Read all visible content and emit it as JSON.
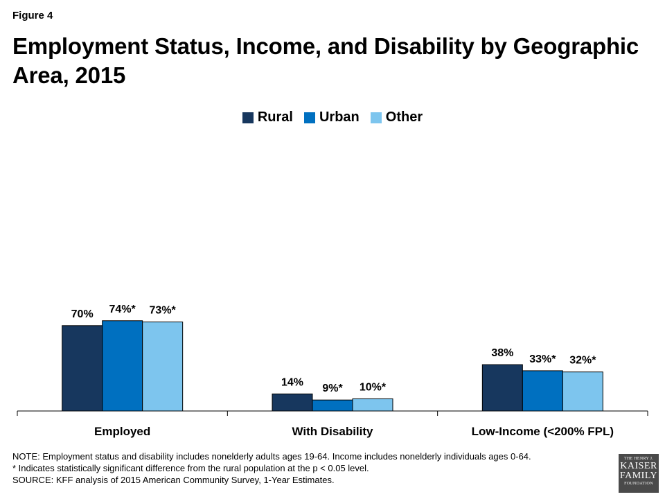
{
  "figure_label": "Figure 4",
  "title": "Employment Status, Income, and Disability by Geographic Area, 2015",
  "colors": {
    "Rural": "#17375e",
    "Urban": "#0070c0",
    "Other": "#7dc5ee"
  },
  "chart_data": {
    "type": "bar",
    "categories": [
      "Employed",
      "With Disability",
      "Low-Income (<200% FPL)"
    ],
    "series": [
      {
        "name": "Rural",
        "values": [
          70,
          14,
          38
        ],
        "labels": [
          "70%",
          "14%",
          "38%"
        ]
      },
      {
        "name": "Urban",
        "values": [
          74,
          9,
          33
        ],
        "labels": [
          "74%*",
          "9%*",
          "33%*"
        ]
      },
      {
        "name": "Other",
        "values": [
          73,
          10,
          32
        ],
        "labels": [
          "73%*",
          "10%*",
          "32%*"
        ]
      }
    ],
    "ylim": [
      0,
      80
    ],
    "grid": false,
    "legend_position": "top-center"
  },
  "notes": [
    "NOTE:  Employment status and disability includes nonelderly adults ages 19-64. Income includes nonelderly individuals ages 0-64.",
    "* Indicates statistically significant difference from the rural population at the p < 0.05 level.",
    "SOURCE: KFF analysis of 2015 American Community Survey, 1-Year Estimates."
  ],
  "logo": {
    "line1": "THE HENRY J.",
    "line2": "KAISER",
    "line3": "FAMILY",
    "line4": "FOUNDATION"
  }
}
